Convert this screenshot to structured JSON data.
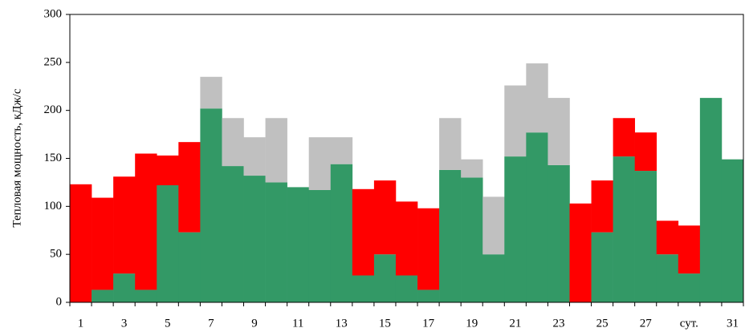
{
  "chart_data": {
    "type": "stacked-bar",
    "y_label": "Тепловая мощность, кДж/с",
    "categories": [
      "1",
      null,
      "3",
      null,
      "5",
      null,
      "7",
      null,
      "9",
      null,
      "11",
      null,
      "13",
      null,
      "15",
      null,
      "17",
      null,
      "19",
      null,
      "21",
      null,
      "23",
      null,
      "25",
      null,
      "27",
      null,
      "сут.",
      null,
      "31"
    ],
    "series": [
      {
        "color": "#339966",
        "values": [
          0,
          13,
          30,
          13,
          122,
          73,
          202,
          142,
          132,
          125,
          120,
          117,
          144,
          28,
          50,
          28,
          13,
          138,
          130,
          50,
          152,
          177,
          143,
          0,
          73,
          152,
          137,
          50,
          30,
          213,
          149
        ]
      },
      {
        "color": "#ff0000",
        "values": [
          123,
          96,
          101,
          142,
          31,
          94,
          0,
          0,
          0,
          0,
          0,
          0,
          0,
          90,
          77,
          77,
          85,
          0,
          0,
          0,
          0,
          0,
          0,
          103,
          54,
          40,
          40,
          35,
          50,
          0,
          0
        ]
      },
      {
        "color": "#c0c0c0",
        "values": [
          0,
          0,
          0,
          0,
          0,
          0,
          33,
          50,
          40,
          67,
          0,
          55,
          28,
          0,
          0,
          0,
          0,
          54,
          19,
          60,
          74,
          72,
          70,
          0,
          0,
          0,
          0,
          0,
          0,
          0,
          0
        ]
      }
    ],
    "ylim": [
      0,
      300
    ],
    "yticks": [
      0,
      50,
      100,
      150,
      200,
      250,
      300
    ],
    "grid": false
  }
}
